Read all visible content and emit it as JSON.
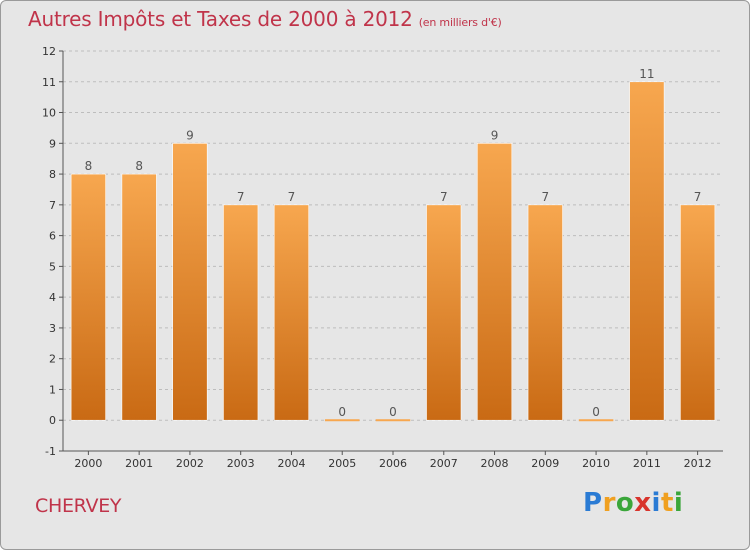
{
  "header": {
    "title": "Autres Impôts et Taxes de 2000 à 2012",
    "unit_note": "(en milliers d'€)"
  },
  "footer": {
    "place": "CHERVEY",
    "logo_letters": [
      {
        "ch": "P",
        "color": "#2a7bd4"
      },
      {
        "ch": "r",
        "color": "#f0a020"
      },
      {
        "ch": "o",
        "color": "#3aa63a"
      },
      {
        "ch": "x",
        "color": "#d8342c"
      },
      {
        "ch": "i",
        "color": "#2a7bd4"
      },
      {
        "ch": "t",
        "color": "#f0a020"
      },
      {
        "ch": "i",
        "color": "#3aa63a"
      }
    ]
  },
  "chart_data": {
    "type": "bar",
    "categories": [
      "2000",
      "2001",
      "2002",
      "2003",
      "2004",
      "2005",
      "2006",
      "2007",
      "2008",
      "2009",
      "2010",
      "2011",
      "2012"
    ],
    "values": [
      8,
      8,
      9,
      7,
      7,
      0,
      0,
      7,
      9,
      7,
      0,
      11,
      7
    ],
    "data_labels": [
      "8",
      "8",
      "9",
      "7",
      "7",
      "0",
      "0",
      "7",
      "9",
      "7",
      "0",
      "11",
      "7"
    ],
    "ylim": [
      -1,
      12
    ],
    "yticks": [
      -1,
      0,
      1,
      2,
      3,
      4,
      5,
      6,
      7,
      8,
      9,
      10,
      11,
      12
    ],
    "ytick_labels": [
      "-1",
      "0",
      "1",
      "2",
      "3",
      "4",
      "5",
      "6",
      "7",
      "8",
      "9",
      "10",
      "11",
      "12"
    ],
    "grid": "horizontal dashed",
    "bar_color_light": "#f7a74f",
    "bar_color_dark": "#c96a14"
  }
}
